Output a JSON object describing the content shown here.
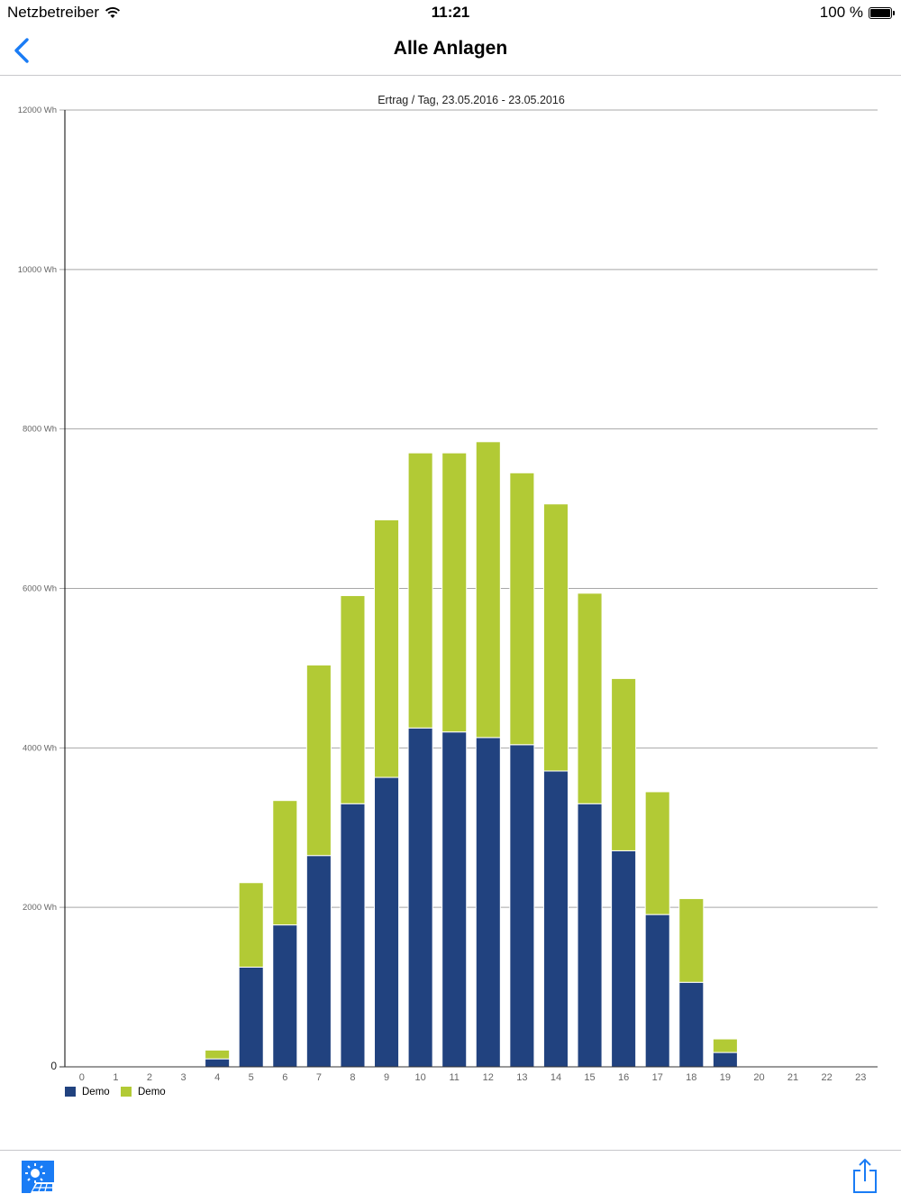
{
  "status_bar": {
    "carrier": "Netzbetreiber",
    "time": "11:21",
    "battery": "100 %",
    "wifi_icon": "wifi-icon",
    "battery_icon": "battery-icon"
  },
  "nav": {
    "title": "Alle Anlagen",
    "back_icon": "chevron-left-icon",
    "accent": "#1a7cf5"
  },
  "toolbar": {
    "left_icon": "solar-panel-icon",
    "right_icon": "share-icon"
  },
  "chart_data": {
    "type": "bar",
    "stacked": true,
    "title": "Ertrag / Tag, 23.05.2016 - 23.05.2016",
    "xlabel": "",
    "ylabel": "",
    "ylim": [
      0,
      12000
    ],
    "y_ticks": [
      0,
      2000,
      4000,
      6000,
      8000,
      10000,
      12000
    ],
    "y_tick_labels": [
      "0",
      "2000 Wh",
      "4000 Wh",
      "6000 Wh",
      "8000 Wh",
      "10000 Wh",
      "12000 Wh"
    ],
    "categories": [
      "0",
      "1",
      "2",
      "3",
      "4",
      "5",
      "6",
      "7",
      "8",
      "9",
      "10",
      "11",
      "12",
      "13",
      "14",
      "15",
      "16",
      "17",
      "18",
      "19",
      "20",
      "21",
      "22",
      "23"
    ],
    "grid": true,
    "legend_position": "bottom-left",
    "series": [
      {
        "name": "Demo",
        "color": "#21427f",
        "values": [
          0,
          0,
          0,
          0,
          100,
          1250,
          1780,
          2650,
          3300,
          3630,
          4250,
          4200,
          4130,
          4040,
          3710,
          3300,
          2710,
          1910,
          1060,
          180,
          0,
          0,
          0,
          0
        ]
      },
      {
        "name": "Demo",
        "color": "#b2ca35",
        "values": [
          0,
          0,
          0,
          0,
          110,
          1060,
          1560,
          2390,
          2610,
          3230,
          3450,
          3500,
          3710,
          3410,
          3350,
          2640,
          2160,
          1540,
          1050,
          170,
          0,
          0,
          0,
          0
        ]
      }
    ]
  }
}
